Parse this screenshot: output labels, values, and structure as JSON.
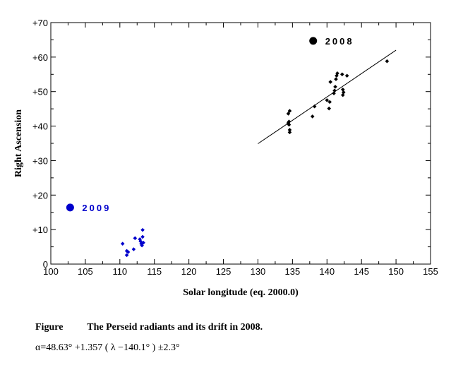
{
  "chart_data": {
    "type": "scatter",
    "title": "",
    "xlabel": "Solar longitude (eq. 2000.0)",
    "ylabel": "Right Ascension",
    "xlim": [
      100,
      155
    ],
    "ylim": [
      0,
      70
    ],
    "xticks": [
      100,
      105,
      110,
      115,
      120,
      125,
      130,
      135,
      140,
      145,
      150,
      155
    ],
    "yticks": [
      0,
      10,
      20,
      30,
      40,
      50,
      60,
      70
    ],
    "ytick_labels": [
      "0",
      "+10",
      "+20",
      "+30",
      "+40",
      "+50",
      "+60",
      "+70"
    ],
    "grid": false,
    "legend_position": "inside",
    "series": [
      {
        "name": "2008",
        "color": "#000000",
        "legend_point": [
          138,
          64.7
        ],
        "points": [
          [
            134.4,
            43.6
          ],
          [
            134.6,
            44.4
          ],
          [
            134.5,
            41.3
          ],
          [
            134.5,
            40.4
          ],
          [
            134.4,
            40.9
          ],
          [
            134.6,
            38.9
          ],
          [
            134.6,
            38.2
          ],
          [
            137.9,
            42.8
          ],
          [
            138.2,
            45.7
          ],
          [
            140.0,
            47.5
          ],
          [
            140.3,
            45.1
          ],
          [
            140.4,
            47.0
          ],
          [
            140.5,
            52.8
          ],
          [
            141.0,
            49.5
          ],
          [
            141.1,
            50.3
          ],
          [
            141.2,
            51.4
          ],
          [
            141.3,
            53.6
          ],
          [
            141.4,
            54.6
          ],
          [
            141.5,
            55.3
          ],
          [
            142.2,
            55.0
          ],
          [
            142.3,
            50.6
          ],
          [
            142.4,
            49.8
          ],
          [
            142.3,
            49.0
          ],
          [
            142.9,
            54.6
          ],
          [
            148.7,
            58.8
          ]
        ],
        "fit_line": {
          "x": [
            130,
            150
          ],
          "y": [
            34.9,
            62.0
          ]
        }
      },
      {
        "name": "2009",
        "color": "#0000cc",
        "legend_point": [
          102.8,
          16.4
        ],
        "points": [
          [
            110.4,
            5.9
          ],
          [
            111.0,
            3.8
          ],
          [
            111.0,
            2.6
          ],
          [
            111.2,
            3.5
          ],
          [
            112.0,
            4.3
          ],
          [
            112.2,
            7.5
          ],
          [
            112.9,
            7.2
          ],
          [
            113.0,
            6.6
          ],
          [
            113.1,
            5.9
          ],
          [
            113.2,
            5.4
          ],
          [
            113.3,
            7.9
          ],
          [
            113.4,
            6.2
          ],
          [
            113.3,
            9.9
          ]
        ]
      }
    ],
    "caption": {
      "label": "Figure",
      "text": "The Perseid radiants and its drift in 2008."
    },
    "formula": "α=48.63°  +1.357 ( λ −140.1° )   ±2.3°"
  }
}
